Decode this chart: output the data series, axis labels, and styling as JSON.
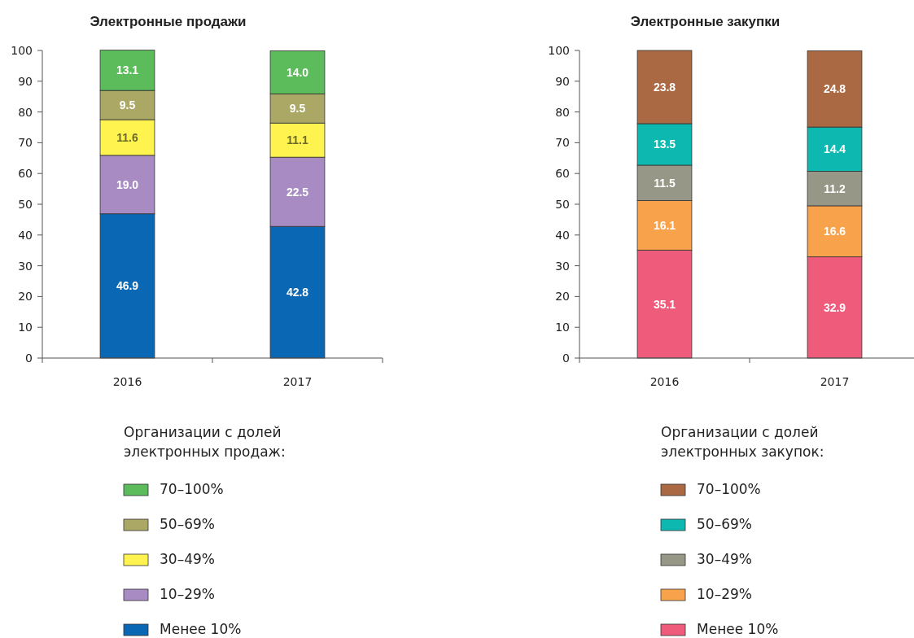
{
  "chart_data": [
    {
      "type": "bar",
      "title": "Электронные продажи",
      "categories": [
        "2016",
        "2017"
      ],
      "stacked": true,
      "ylim": [
        0,
        100
      ],
      "yticks": [
        0,
        10,
        20,
        30,
        40,
        50,
        60,
        70,
        80,
        90,
        100
      ],
      "grid": false,
      "legend": "bottom",
      "legend_title": "Организации с долей\nэлектронных продаж:",
      "series": [
        {
          "name": "Менее 10%",
          "color": "#0a67b3",
          "values": [
            46.9,
            42.8
          ],
          "value_labels": [
            "46.9",
            "42.8"
          ]
        },
        {
          "name": "10–29%",
          "color": "#a98bc4",
          "values": [
            19.0,
            22.5
          ],
          "value_labels": [
            "19.0",
            "22.5"
          ]
        },
        {
          "name": "30–49%",
          "color": "#fff44f",
          "values": [
            11.6,
            11.1
          ],
          "value_labels": [
            "11.6",
            "11.1"
          ]
        },
        {
          "name": "50–69%",
          "color": "#aba866",
          "values": [
            9.5,
            9.5
          ],
          "value_labels": [
            "9.5",
            "9.5"
          ]
        },
        {
          "name": "70–100%",
          "color": "#5cbb5b",
          "values": [
            13.1,
            14.0
          ],
          "value_labels": [
            "13.1",
            "14.0"
          ]
        }
      ]
    },
    {
      "type": "bar",
      "title": "Электронные закупки",
      "categories": [
        "2016",
        "2017"
      ],
      "stacked": true,
      "ylim": [
        0,
        100
      ],
      "yticks": [
        0,
        10,
        20,
        30,
        40,
        50,
        60,
        70,
        80,
        90,
        100
      ],
      "grid": false,
      "legend": "bottom",
      "legend_title": "Организации с долей\nэлектронных закупок:",
      "series": [
        {
          "name": "Менее 10%",
          "color": "#ef5b7a",
          "values": [
            35.1,
            32.9
          ],
          "value_labels": [
            "35.1",
            "32.9"
          ]
        },
        {
          "name": "10–29%",
          "color": "#f8a34b",
          "values": [
            16.1,
            16.6
          ],
          "value_labels": [
            "16.1",
            "16.6"
          ]
        },
        {
          "name": "30–49%",
          "color": "#979787",
          "values": [
            11.5,
            11.2
          ],
          "value_labels": [
            "11.5",
            "11.2"
          ]
        },
        {
          "name": "50–69%",
          "color": "#0db8b0",
          "values": [
            13.5,
            14.4
          ],
          "value_labels": [
            "13.5",
            "14.4"
          ]
        },
        {
          "name": "70–100%",
          "color": "#ab6943",
          "values": [
            23.8,
            24.8
          ],
          "value_labels": [
            "23.8",
            "24.8"
          ]
        }
      ]
    }
  ]
}
